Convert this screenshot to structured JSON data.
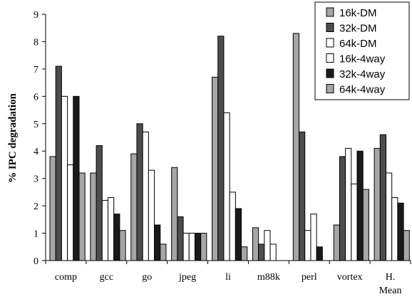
{
  "chart_data": {
    "type": "bar",
    "ylabel": "% IPC degradation",
    "ylim": [
      0,
      9
    ],
    "yticks": [
      "0",
      "1",
      "2",
      "3",
      "4",
      "5",
      "6",
      "7",
      "8",
      "9"
    ],
    "grid": false,
    "legend_position": "top-right",
    "categories": [
      "comp",
      "gcc",
      "go",
      "jpeg",
      "li",
      "m88k",
      "perl",
      "vortex",
      "H. Mean"
    ],
    "series": [
      {
        "name": "16k-DM",
        "color": "#a6a6a6",
        "values": [
          3.8,
          3.2,
          3.9,
          3.4,
          6.7,
          1.2,
          8.3,
          1.3,
          4.1
        ]
      },
      {
        "name": "32k-DM",
        "color": "#4d4d4d",
        "values": [
          7.1,
          4.2,
          5.0,
          1.6,
          8.2,
          0.6,
          4.7,
          3.8,
          4.6
        ]
      },
      {
        "name": "64k-DM",
        "color": "#ffffff",
        "values": [
          6.0,
          2.2,
          4.7,
          1.0,
          5.4,
          1.1,
          1.1,
          4.1,
          3.2
        ]
      },
      {
        "name": "16k-4way",
        "color": "#ffffff",
        "values": [
          3.5,
          2.3,
          3.3,
          1.0,
          2.5,
          0.6,
          1.7,
          2.8,
          2.3
        ]
      },
      {
        "name": "32k-4way",
        "color": "#1a1a1a",
        "values": [
          6.0,
          1.7,
          1.3,
          1.0,
          1.9,
          0.0,
          0.5,
          4.0,
          2.1
        ]
      },
      {
        "name": "64k-4way",
        "color": "#a6a6a6",
        "values": [
          3.2,
          1.1,
          0.6,
          1.0,
          0.5,
          0.0,
          0.0,
          2.6,
          1.1
        ]
      }
    ]
  }
}
